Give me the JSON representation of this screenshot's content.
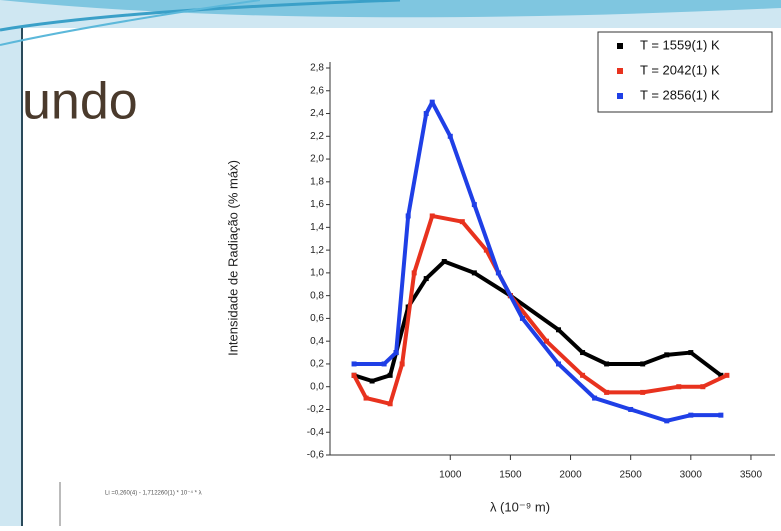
{
  "slide_title": "undo",
  "inset_formula": "Li =0,260(4) - 1,712260(1) * 10⁻⁴ * λ",
  "chart_data": {
    "type": "scatter",
    "y_label": "Intensidade de Radiação (% máx)",
    "x_label": "λ (10⁻⁹ m)",
    "xlim": [
      0,
      3700
    ],
    "xticks": [
      1000,
      1500,
      2000,
      2500,
      3000,
      3500
    ],
    "ylim": [
      -0.6,
      2.8
    ],
    "yticks": [
      {
        "value": -0.6,
        "label": "-0,6"
      },
      {
        "value": -0.4,
        "label": "-0,4"
      },
      {
        "value": -0.2,
        "label": "-0,2"
      },
      {
        "value": 0,
        "label": "0,0"
      },
      {
        "value": 0.2,
        "label": "0,2"
      },
      {
        "value": 0.4,
        "label": "0,4"
      },
      {
        "value": 0.6,
        "label": "0,6"
      },
      {
        "value": 0.8,
        "label": "0,8"
      },
      {
        "value": 1.0,
        "label": "1,0"
      },
      {
        "value": 1.2,
        "label": "1,2"
      },
      {
        "value": 1.4,
        "label": "1,4"
      },
      {
        "value": 1.6,
        "label": "1,6"
      },
      {
        "value": 1.8,
        "label": "1,8"
      },
      {
        "value": 2.0,
        "label": "2,0"
      },
      {
        "value": 2.2,
        "label": "2,2"
      },
      {
        "value": 2.4,
        "label": "2,4"
      },
      {
        "value": 2.6,
        "label": "2,6"
      },
      {
        "value": 2.8,
        "label": "2,8"
      }
    ],
    "series": [
      {
        "name": "T = 1559(1) K",
        "color": "#000000",
        "x": [
          200,
          350,
          500,
          550,
          650,
          800,
          950,
          1200,
          1500,
          1900,
          2100,
          2300,
          2600,
          2800,
          3000,
          3250
        ],
        "values": [
          0.1,
          0.05,
          0.1,
          0.3,
          0.7,
          0.95,
          1.1,
          1.0,
          0.8,
          0.5,
          0.3,
          0.2,
          0.2,
          0.28,
          0.3,
          0.1
        ]
      },
      {
        "name": "T = 2042(1) K",
        "color": "#e8321e",
        "x": [
          200,
          300,
          500,
          600,
          700,
          850,
          1100,
          1300,
          1500,
          1800,
          2100,
          2300,
          2600,
          2900,
          3100,
          3300
        ],
        "values": [
          0.1,
          -0.1,
          -0.15,
          0.2,
          1.0,
          1.5,
          1.45,
          1.2,
          0.8,
          0.4,
          0.1,
          -0.05,
          -0.05,
          0.0,
          0.0,
          0.1
        ]
      },
      {
        "name": "T = 2856(1) K",
        "color": "#1f3fe6",
        "x": [
          200,
          450,
          550,
          650,
          800,
          850,
          1000,
          1200,
          1400,
          1600,
          1900,
          2200,
          2500,
          2800,
          3000,
          3250
        ],
        "values": [
          0.2,
          0.2,
          0.3,
          1.5,
          2.4,
          2.5,
          2.2,
          1.6,
          1.0,
          0.6,
          0.2,
          -0.1,
          -0.2,
          -0.3,
          -0.25,
          -0.25
        ]
      }
    ]
  }
}
